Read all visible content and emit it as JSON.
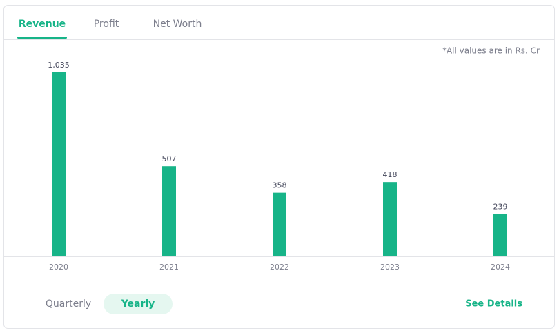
{
  "tabs": [
    "Revenue",
    "Profit",
    "Net Worth"
  ],
  "note": "*All values are in Rs. Cr",
  "chart_data": {
    "type": "bar",
    "categories": [
      "2020",
      "2021",
      "2022",
      "2023",
      "2024"
    ],
    "values": [
      1035,
      507,
      358,
      418,
      239
    ],
    "value_labels": [
      "1,035",
      "507",
      "358",
      "418",
      "239"
    ],
    "color": "#17b488"
  },
  "toggle": [
    "Quarterly",
    "Yearly"
  ],
  "link": "See Details"
}
